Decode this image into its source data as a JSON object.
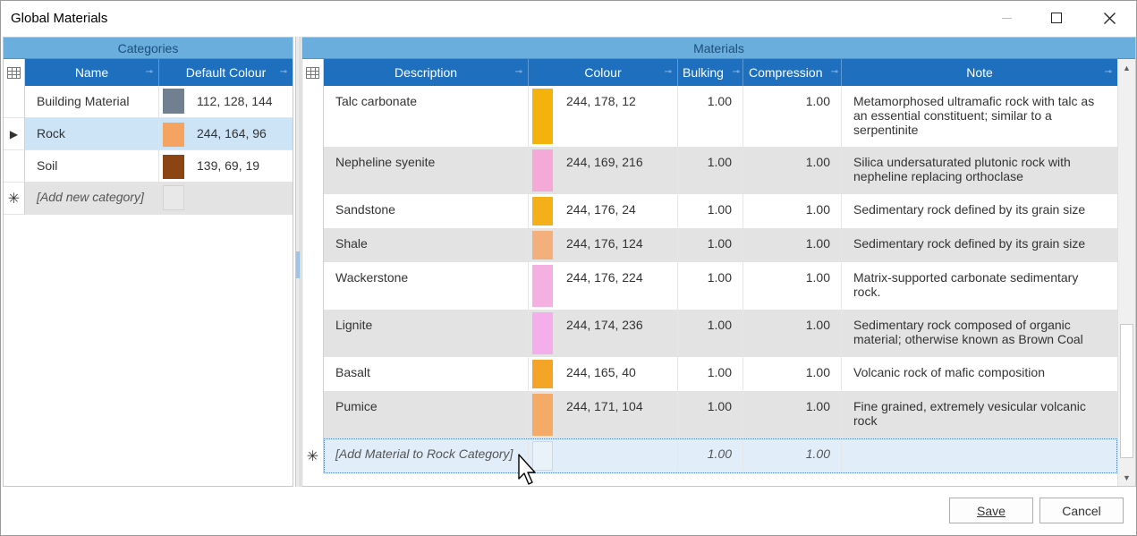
{
  "window": {
    "title": "Global Materials"
  },
  "categories": {
    "caption": "Categories",
    "columns": {
      "name": "Name",
      "colour": "Default Colour"
    },
    "rows": [
      {
        "name": "Building Material",
        "colour_text": "112, 128, 144",
        "colour": "#708090"
      },
      {
        "name": "Rock",
        "colour_text": "244, 164, 96",
        "colour": "#f4a460"
      },
      {
        "name": "Soil",
        "colour_text": "139, 69, 19",
        "colour": "#8b4513"
      }
    ],
    "new_row_text": "[Add new category]"
  },
  "materials": {
    "caption": "Materials",
    "columns": {
      "description": "Description",
      "colour": "Colour",
      "bulking": "Bulking",
      "compression": "Compression",
      "note": "Note"
    },
    "rows": [
      {
        "description": "Talc carbonate",
        "colour_text": "244, 178, 12",
        "colour": "#f4b20c",
        "bulking": "1.00",
        "compression": "1.00",
        "note": "Metamorphosed ultramafic rock with talc as an essential constituent; similar to a serpentinite"
      },
      {
        "description": "Nepheline syenite",
        "colour_text": "244, 169, 216",
        "colour": "#f4a9d8",
        "bulking": "1.00",
        "compression": "1.00",
        "note": "Silica undersaturated plutonic rock with nepheline replacing orthoclase"
      },
      {
        "description": "Sandstone",
        "colour_text": "244, 176, 24",
        "colour": "#f4b018",
        "bulking": "1.00",
        "compression": "1.00",
        "note": "Sedimentary rock defined by its grain size"
      },
      {
        "description": "Shale",
        "colour_text": "244, 176, 124",
        "colour": "#f4b07c",
        "bulking": "1.00",
        "compression": "1.00",
        "note": "Sedimentary rock defined by its grain size"
      },
      {
        "description": "Wackerstone",
        "colour_text": "244, 176, 224",
        "colour": "#f4b0e0",
        "bulking": "1.00",
        "compression": "1.00",
        "note": "Matrix-supported carbonate sedimentary rock."
      },
      {
        "description": "Lignite",
        "colour_text": "244, 174, 236",
        "colour": "#f4aeec",
        "bulking": "1.00",
        "compression": "1.00",
        "note": "Sedimentary rock composed of organic material; otherwise known as Brown Coal"
      },
      {
        "description": "Basalt",
        "colour_text": "244, 165, 40",
        "colour": "#f4a528",
        "bulking": "1.00",
        "compression": "1.00",
        "note": "Volcanic rock of mafic composition"
      },
      {
        "description": "Pumice",
        "colour_text": "244, 171, 104",
        "colour": "#f4ab68",
        "bulking": "1.00",
        "compression": "1.00",
        "note": "Fine grained, extremely vesicular volcanic rock"
      }
    ],
    "new_row": {
      "description": "[Add Material to Rock Category]",
      "bulking": "1.00",
      "compression": "1.00"
    }
  },
  "buttons": {
    "save": "Save",
    "cancel": "Cancel"
  }
}
